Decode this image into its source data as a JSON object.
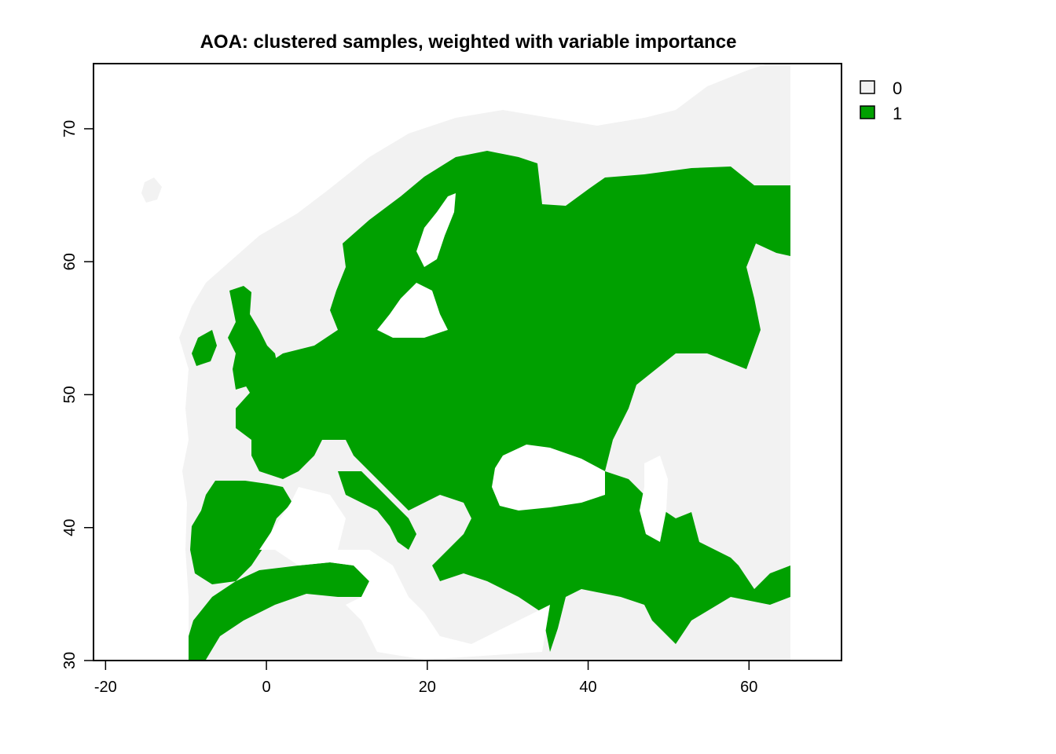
{
  "title": "AOA: clustered samples, weighted with variable importance",
  "x_axis": {
    "range": [
      -21.5,
      71.5
    ],
    "ticks": [
      {
        "value": -20,
        "label": "-20"
      },
      {
        "value": 0,
        "label": "0"
      },
      {
        "value": 20,
        "label": "20"
      },
      {
        "value": 40,
        "label": "40"
      },
      {
        "value": 60,
        "label": "60"
      }
    ]
  },
  "y_axis": {
    "range": [
      30,
      74.9
    ],
    "ticks": [
      {
        "value": 30,
        "label": "30"
      },
      {
        "value": 40,
        "label": "40"
      },
      {
        "value": 50,
        "label": "50"
      },
      {
        "value": 60,
        "label": "60"
      },
      {
        "value": 70,
        "label": "70"
      }
    ]
  },
  "legend": {
    "placement": "top-right",
    "items": [
      {
        "label": "0",
        "color": "#f2f2f2"
      },
      {
        "label": "1",
        "color": "#00a000"
      }
    ]
  },
  "colors": {
    "aoa_inside": "#00a000",
    "aoa_outside": "#f2f2f2",
    "water": "#ffffff"
  }
}
